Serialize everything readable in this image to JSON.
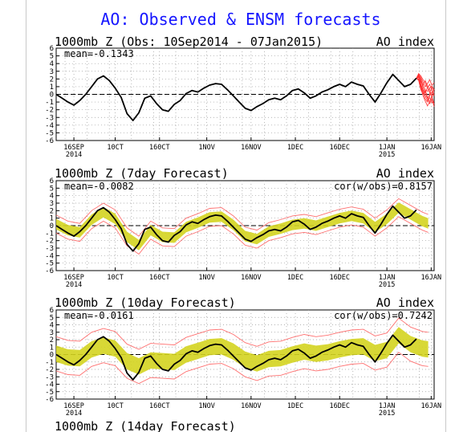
{
  "figure": {
    "title": "AO: Observed & ENSM forecasts",
    "title_color": "#1515ff"
  },
  "chart_data": [
    {
      "type": "line",
      "title": "1000mb Z (Obs: 10Sep2014 - 07Jan2015)",
      "right_label": "AO index",
      "annotation_left": "mean=-0.1343",
      "annotation_right": "",
      "ylim": [
        -6,
        6
      ],
      "yticks": [
        -6,
        -5,
        -4,
        -3,
        -2,
        -1,
        0,
        1,
        2,
        3,
        4,
        5,
        6
      ],
      "xlim": [
        0,
        128
      ],
      "xticks": [
        {
          "x": 6,
          "label": "16SEP",
          "sub": "2014"
        },
        {
          "x": 20,
          "label": "10CT",
          "sub": ""
        },
        {
          "x": 35,
          "label": "160CT",
          "sub": ""
        },
        {
          "x": 51,
          "label": "1NOV",
          "sub": ""
        },
        {
          "x": 66,
          "label": "16NOV",
          "sub": ""
        },
        {
          "x": 81,
          "label": "1DEC",
          "sub": ""
        },
        {
          "x": 96,
          "label": "16DEC",
          "sub": ""
        },
        {
          "x": 112,
          "label": "1JAN",
          "sub": "2015"
        },
        {
          "x": 127,
          "label": "16JAN",
          "sub": ""
        }
      ],
      "zero_line": true,
      "grid": "dotted",
      "colors": {
        "observed": "#000000",
        "ensemble": "#ff3030"
      },
      "observed": [
        [
          0,
          0
        ],
        [
          2,
          -0.5
        ],
        [
          4,
          -1
        ],
        [
          6,
          -1.4
        ],
        [
          8,
          -0.8
        ],
        [
          10,
          0
        ],
        [
          12,
          1
        ],
        [
          14,
          2
        ],
        [
          16,
          2.4
        ],
        [
          18,
          1.8
        ],
        [
          20,
          0.8
        ],
        [
          22,
          -0.4
        ],
        [
          24,
          -2.5
        ],
        [
          26,
          -3.4
        ],
        [
          28,
          -2.4
        ],
        [
          30,
          -0.5
        ],
        [
          32,
          -0.2
        ],
        [
          34,
          -1.2
        ],
        [
          36,
          -2
        ],
        [
          38,
          -2.2
        ],
        [
          40,
          -1.3
        ],
        [
          42,
          -0.8
        ],
        [
          44,
          0.1
        ],
        [
          46,
          0.5
        ],
        [
          48,
          0.3
        ],
        [
          50,
          0.8
        ],
        [
          52,
          1.2
        ],
        [
          54,
          1.4
        ],
        [
          56,
          1.3
        ],
        [
          58,
          0.6
        ],
        [
          60,
          -0.2
        ],
        [
          62,
          -1
        ],
        [
          64,
          -1.8
        ],
        [
          66,
          -2.1
        ],
        [
          68,
          -1.6
        ],
        [
          70,
          -1.2
        ],
        [
          72,
          -0.7
        ],
        [
          74,
          -0.5
        ],
        [
          76,
          -0.7
        ],
        [
          78,
          -0.2
        ],
        [
          80,
          0.5
        ],
        [
          82,
          0.7
        ],
        [
          84,
          0.2
        ],
        [
          86,
          -0.5
        ],
        [
          88,
          -0.2
        ],
        [
          90,
          0.3
        ],
        [
          92,
          0.6
        ],
        [
          94,
          1
        ],
        [
          96,
          1.3
        ],
        [
          98,
          1
        ],
        [
          100,
          1.6
        ],
        [
          102,
          1.3
        ],
        [
          104,
          1.1
        ],
        [
          106,
          0
        ],
        [
          108,
          -1
        ],
        [
          110,
          0.2
        ],
        [
          112,
          1.5
        ],
        [
          114,
          2.6
        ],
        [
          116,
          1.8
        ],
        [
          118,
          1
        ],
        [
          120,
          1.3
        ],
        [
          122,
          2.1
        ]
      ],
      "ensemble_start": 122,
      "ensemble_members": [
        [
          2.1,
          2.5,
          2.0,
          1.2,
          0.6,
          0.4,
          0.8,
          1.1,
          0.6
        ],
        [
          2.1,
          2.3,
          1.4,
          0.6,
          0.1,
          -0.5,
          -0.2,
          0.3,
          0.0
        ],
        [
          2.1,
          2.0,
          1.0,
          0.2,
          -0.6,
          -1.0,
          -0.4,
          -1.1,
          -0.9
        ],
        [
          2.1,
          2.6,
          2.2,
          1.6,
          1.0,
          1.4,
          1.9,
          1.2,
          1.5
        ],
        [
          2.1,
          1.8,
          0.6,
          0.0,
          0.5,
          -0.3,
          -1.2,
          -0.6,
          -1.6
        ],
        [
          2.1,
          2.4,
          1.8,
          0.9,
          0.2,
          0.9,
          1.3,
          0.5,
          -0.2
        ],
        [
          2.1,
          2.2,
          1.2,
          0.4,
          -0.2,
          -0.8,
          0.1,
          -0.1,
          0.7
        ],
        [
          2.1,
          2.7,
          2.4,
          1.9,
          1.5,
          0.8,
          0.2,
          0.9,
          0.3
        ],
        [
          2.1,
          1.9,
          0.9,
          -0.2,
          -0.9,
          -1.5,
          -0.9,
          -0.3,
          -1.3
        ],
        [
          2.1,
          2.3,
          1.6,
          1.2,
          1.8,
          1.1,
          0.6,
          -0.4,
          0.2
        ]
      ]
    },
    {
      "type": "line",
      "title": "1000mb Z (7day Forecast)",
      "right_label": "AO index",
      "annotation_left": "mean=-0.0082",
      "annotation_right": "cor(w/obs)=0.8157",
      "ylim": [
        -6,
        6
      ],
      "yticks": [
        -6,
        -5,
        -4,
        -3,
        -2,
        -1,
        0,
        1,
        2,
        3,
        4,
        5,
        6
      ],
      "xlim": [
        0,
        128
      ],
      "xticks": [
        {
          "x": 6,
          "label": "16SEP",
          "sub": "2014"
        },
        {
          "x": 20,
          "label": "10CT",
          "sub": ""
        },
        {
          "x": 35,
          "label": "160CT",
          "sub": ""
        },
        {
          "x": 51,
          "label": "1NOV",
          "sub": ""
        },
        {
          "x": 66,
          "label": "16NOV",
          "sub": ""
        },
        {
          "x": 81,
          "label": "1DEC",
          "sub": ""
        },
        {
          "x": 96,
          "label": "16DEC",
          "sub": ""
        },
        {
          "x": 112,
          "label": "1JAN",
          "sub": "2015"
        },
        {
          "x": 127,
          "label": "16JAN",
          "sub": ""
        }
      ],
      "zero_line": true,
      "grid": "dotted",
      "colors": {
        "observed": "#000000",
        "spread": "#d4d420",
        "bounds": "#ff7070"
      },
      "observed": [
        [
          0,
          0
        ],
        [
          2,
          -0.5
        ],
        [
          4,
          -1
        ],
        [
          6,
          -1.4
        ],
        [
          8,
          -0.8
        ],
        [
          10,
          0
        ],
        [
          12,
          1
        ],
        [
          14,
          2
        ],
        [
          16,
          2.4
        ],
        [
          18,
          1.8
        ],
        [
          20,
          0.8
        ],
        [
          22,
          -0.4
        ],
        [
          24,
          -2.5
        ],
        [
          26,
          -3.4
        ],
        [
          28,
          -2.4
        ],
        [
          30,
          -0.5
        ],
        [
          32,
          -0.2
        ],
        [
          34,
          -1.2
        ],
        [
          36,
          -2
        ],
        [
          38,
          -2.2
        ],
        [
          40,
          -1.3
        ],
        [
          42,
          -0.8
        ],
        [
          44,
          0.1
        ],
        [
          46,
          0.5
        ],
        [
          48,
          0.3
        ],
        [
          50,
          0.8
        ],
        [
          52,
          1.2
        ],
        [
          54,
          1.4
        ],
        [
          56,
          1.3
        ],
        [
          58,
          0.6
        ],
        [
          60,
          -0.2
        ],
        [
          62,
          -1
        ],
        [
          64,
          -1.8
        ],
        [
          66,
          -2.1
        ],
        [
          68,
          -1.6
        ],
        [
          70,
          -1.2
        ],
        [
          72,
          -0.7
        ],
        [
          74,
          -0.5
        ],
        [
          76,
          -0.7
        ],
        [
          78,
          -0.2
        ],
        [
          80,
          0.5
        ],
        [
          82,
          0.7
        ],
        [
          84,
          0.2
        ],
        [
          86,
          -0.5
        ],
        [
          88,
          -0.2
        ],
        [
          90,
          0.3
        ],
        [
          92,
          0.6
        ],
        [
          94,
          1
        ],
        [
          96,
          1.3
        ],
        [
          98,
          1
        ],
        [
          100,
          1.6
        ],
        [
          102,
          1.3
        ],
        [
          104,
          1.1
        ],
        [
          106,
          0
        ],
        [
          108,
          -1
        ],
        [
          110,
          0.2
        ],
        [
          112,
          1.5
        ],
        [
          114,
          2.6
        ],
        [
          116,
          1.8
        ],
        [
          118,
          1
        ],
        [
          120,
          1.3
        ],
        [
          122,
          2.1
        ]
      ],
      "forecast_end": 126,
      "forecast_mean": [
        [
          0,
          0.2
        ],
        [
          4,
          -0.6
        ],
        [
          8,
          -0.9
        ],
        [
          12,
          0.8
        ],
        [
          16,
          1.8
        ],
        [
          20,
          0.9
        ],
        [
          24,
          -1.5
        ],
        [
          28,
          -2.6
        ],
        [
          32,
          -0.6
        ],
        [
          36,
          -1.5
        ],
        [
          40,
          -1.6
        ],
        [
          44,
          -0.2
        ],
        [
          48,
          0.4
        ],
        [
          52,
          1.1
        ],
        [
          56,
          1.2
        ],
        [
          60,
          0.1
        ],
        [
          64,
          -1.4
        ],
        [
          68,
          -1.8
        ],
        [
          72,
          -0.8
        ],
        [
          76,
          -0.4
        ],
        [
          80,
          0.1
        ],
        [
          84,
          0.3
        ],
        [
          88,
          0.0
        ],
        [
          92,
          0.5
        ],
        [
          96,
          1.0
        ],
        [
          100,
          1.3
        ],
        [
          104,
          1.0
        ],
        [
          108,
          -0.2
        ],
        [
          112,
          0.9
        ],
        [
          116,
          2.4
        ],
        [
          120,
          1.5
        ],
        [
          124,
          0.6
        ],
        [
          126,
          0.3
        ]
      ],
      "spread_halfwidth": 0.7,
      "bound_halfwidth": 1.2
    },
    {
      "type": "line",
      "title": "1000mb Z (10day Forecast)",
      "right_label": "AO index",
      "annotation_left": "mean=-0.0161",
      "annotation_right": "cor(w/obs)=0.7242",
      "ylim": [
        -6,
        6
      ],
      "yticks": [
        -6,
        -5,
        -4,
        -3,
        -2,
        -1,
        0,
        1,
        2,
        3,
        4,
        5,
        6
      ],
      "xlim": [
        0,
        128
      ],
      "xticks": [
        {
          "x": 6,
          "label": "16SEP",
          "sub": "2014"
        },
        {
          "x": 20,
          "label": "10CT",
          "sub": ""
        },
        {
          "x": 35,
          "label": "160CT",
          "sub": ""
        },
        {
          "x": 51,
          "label": "1NOV",
          "sub": ""
        },
        {
          "x": 66,
          "label": "16NOV",
          "sub": ""
        },
        {
          "x": 81,
          "label": "1DEC",
          "sub": ""
        },
        {
          "x": 96,
          "label": "16DEC",
          "sub": ""
        },
        {
          "x": 112,
          "label": "1JAN",
          "sub": "2015"
        },
        {
          "x": 127,
          "label": "16JAN",
          "sub": ""
        }
      ],
      "zero_line": true,
      "grid": "dotted",
      "colors": {
        "observed": "#000000",
        "spread": "#d4d420",
        "bounds": "#ff7070"
      },
      "observed": [
        [
          0,
          0
        ],
        [
          2,
          -0.5
        ],
        [
          4,
          -1
        ],
        [
          6,
          -1.4
        ],
        [
          8,
          -0.8
        ],
        [
          10,
          0
        ],
        [
          12,
          1
        ],
        [
          14,
          2
        ],
        [
          16,
          2.4
        ],
        [
          18,
          1.8
        ],
        [
          20,
          0.8
        ],
        [
          22,
          -0.4
        ],
        [
          24,
          -2.5
        ],
        [
          26,
          -3.4
        ],
        [
          28,
          -2.4
        ],
        [
          30,
          -0.5
        ],
        [
          32,
          -0.2
        ],
        [
          34,
          -1.2
        ],
        [
          36,
          -2
        ],
        [
          38,
          -2.2
        ],
        [
          40,
          -1.3
        ],
        [
          42,
          -0.8
        ],
        [
          44,
          0.1
        ],
        [
          46,
          0.5
        ],
        [
          48,
          0.3
        ],
        [
          50,
          0.8
        ],
        [
          52,
          1.2
        ],
        [
          54,
          1.4
        ],
        [
          56,
          1.3
        ],
        [
          58,
          0.6
        ],
        [
          60,
          -0.2
        ],
        [
          62,
          -1
        ],
        [
          64,
          -1.8
        ],
        [
          66,
          -2.1
        ],
        [
          68,
          -1.6
        ],
        [
          70,
          -1.2
        ],
        [
          72,
          -0.7
        ],
        [
          74,
          -0.5
        ],
        [
          76,
          -0.7
        ],
        [
          78,
          -0.2
        ],
        [
          80,
          0.5
        ],
        [
          82,
          0.7
        ],
        [
          84,
          0.2
        ],
        [
          86,
          -0.5
        ],
        [
          88,
          -0.2
        ],
        [
          90,
          0.3
        ],
        [
          92,
          0.6
        ],
        [
          94,
          1
        ],
        [
          96,
          1.3
        ],
        [
          98,
          1
        ],
        [
          100,
          1.6
        ],
        [
          102,
          1.3
        ],
        [
          104,
          1.1
        ],
        [
          106,
          0
        ],
        [
          108,
          -1
        ],
        [
          110,
          0.2
        ],
        [
          112,
          1.5
        ],
        [
          114,
          2.6
        ],
        [
          116,
          1.8
        ],
        [
          118,
          1
        ],
        [
          120,
          1.3
        ],
        [
          122,
          2.1
        ]
      ],
      "forecast_end": 126,
      "forecast_mean": [
        [
          0,
          0.1
        ],
        [
          4,
          -0.4
        ],
        [
          8,
          -0.5
        ],
        [
          12,
          0.7
        ],
        [
          16,
          1.2
        ],
        [
          20,
          0.8
        ],
        [
          24,
          -0.9
        ],
        [
          28,
          -1.6
        ],
        [
          32,
          -0.8
        ],
        [
          36,
          -0.9
        ],
        [
          40,
          -1.0
        ],
        [
          44,
          0.0
        ],
        [
          48,
          0.5
        ],
        [
          52,
          1.0
        ],
        [
          56,
          1.1
        ],
        [
          60,
          0.4
        ],
        [
          64,
          -0.7
        ],
        [
          68,
          -1.2
        ],
        [
          72,
          -0.6
        ],
        [
          76,
          -0.5
        ],
        [
          80,
          0.0
        ],
        [
          84,
          0.4
        ],
        [
          88,
          0.1
        ],
        [
          92,
          0.3
        ],
        [
          96,
          0.7
        ],
        [
          100,
          1.0
        ],
        [
          104,
          1.1
        ],
        [
          108,
          0.2
        ],
        [
          112,
          0.6
        ],
        [
          116,
          2.6
        ],
        [
          120,
          1.4
        ],
        [
          124,
          0.8
        ],
        [
          126,
          0.7
        ]
      ],
      "spread_halfwidth": 1.1,
      "bound_halfwidth": 2.3
    },
    {
      "type": "line",
      "title": "1000mb Z (14day Forecast)",
      "right_label": "",
      "annotation_left": "",
      "annotation_right": "",
      "ylim": [
        -6,
        6
      ],
      "xlim": [
        0,
        128
      ]
    }
  ]
}
